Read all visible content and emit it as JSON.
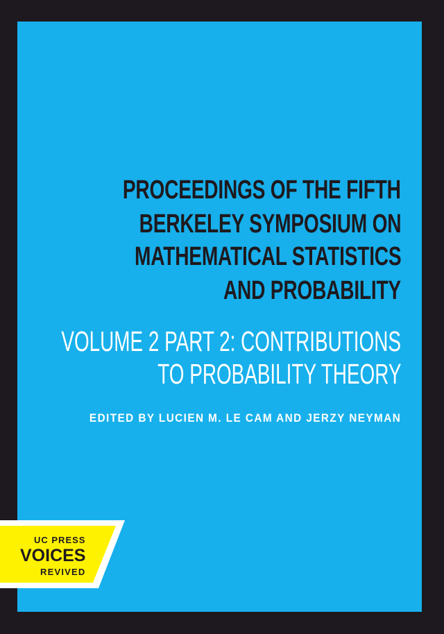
{
  "cover": {
    "title_lines": [
      "PROCEEDINGS OF THE FIFTH",
      "BERKELEY SYMPOSIUM ON",
      "MATHEMATICAL STATISTICS",
      "AND PROBABILITY"
    ],
    "subtitle_lines": [
      "VOLUME 2 PART 2: CONTRIBUTIONS",
      "TO PROBABILITY THEORY"
    ],
    "editors": "EDITED BY LUCIEN M. LE CAM AND JERZY NEYMAN"
  },
  "badge": {
    "line1": "UC PRESS",
    "line2": "VOICES",
    "line3": "REVIVED"
  },
  "colors": {
    "background": "#17b0ec",
    "frame": "#1e191e",
    "badge": "#fff200",
    "title": "#1e191e",
    "subtitle": "#ffffff"
  }
}
